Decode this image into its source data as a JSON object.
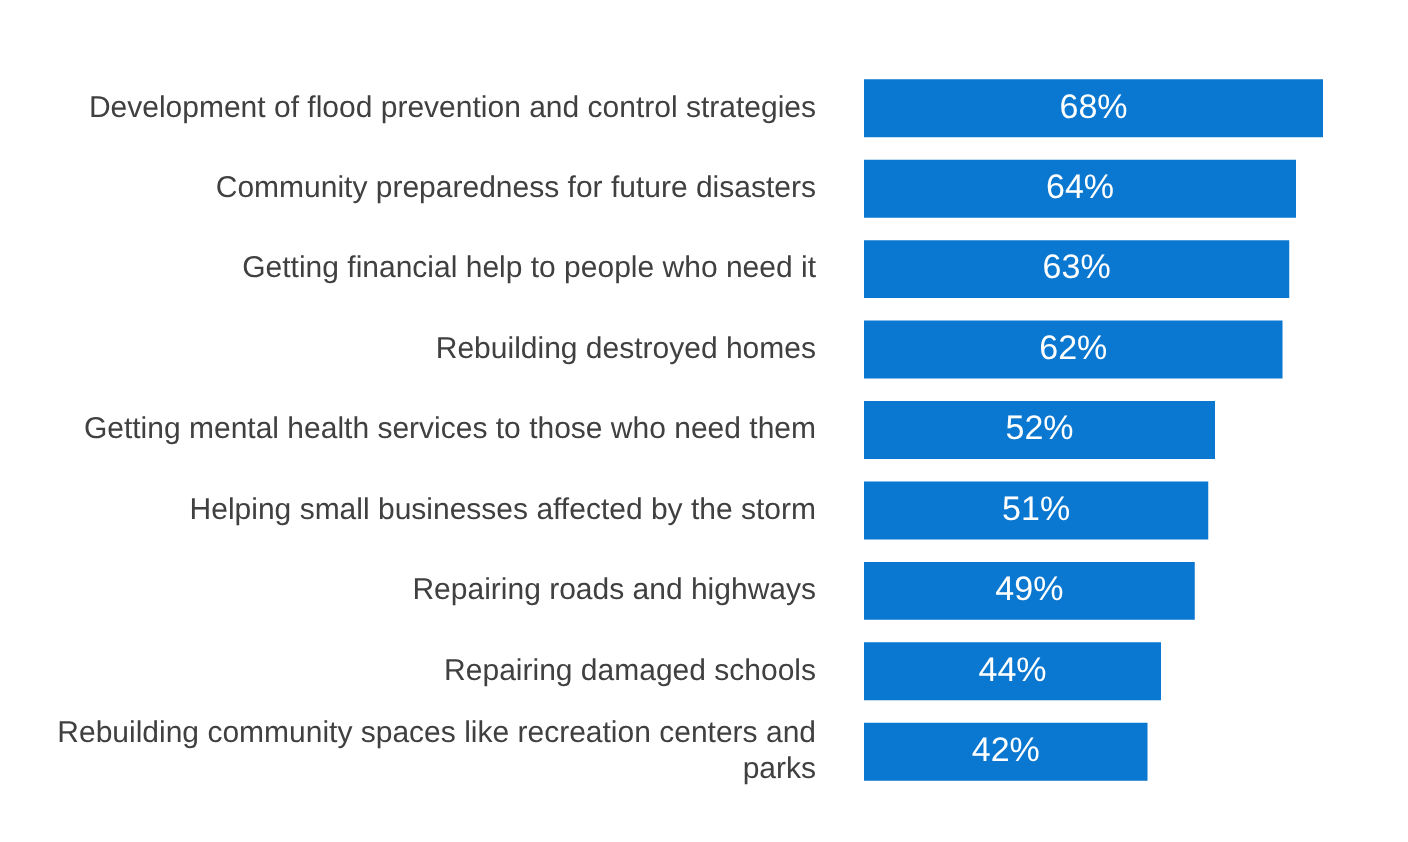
{
  "chart_data": {
    "type": "bar",
    "orientation": "horizontal",
    "categories": [
      "Development of flood prevention and control strategies",
      "Community preparedness for future disasters",
      "Getting financial help to people who need it",
      "Rebuilding destroyed homes",
      "Getting mental health services to those who need them",
      "Helping small businesses affected by the storm",
      "Repairing roads and highways",
      "Repairing damaged schools",
      "Rebuilding community spaces like recreation centers and parks"
    ],
    "values": [
      68,
      64,
      63,
      62,
      52,
      51,
      49,
      44,
      42
    ],
    "value_labels": [
      "68%",
      "64%",
      "63%",
      "62%",
      "52%",
      "51%",
      "49%",
      "44%",
      "42%"
    ],
    "color": "#0a77d0"
  }
}
